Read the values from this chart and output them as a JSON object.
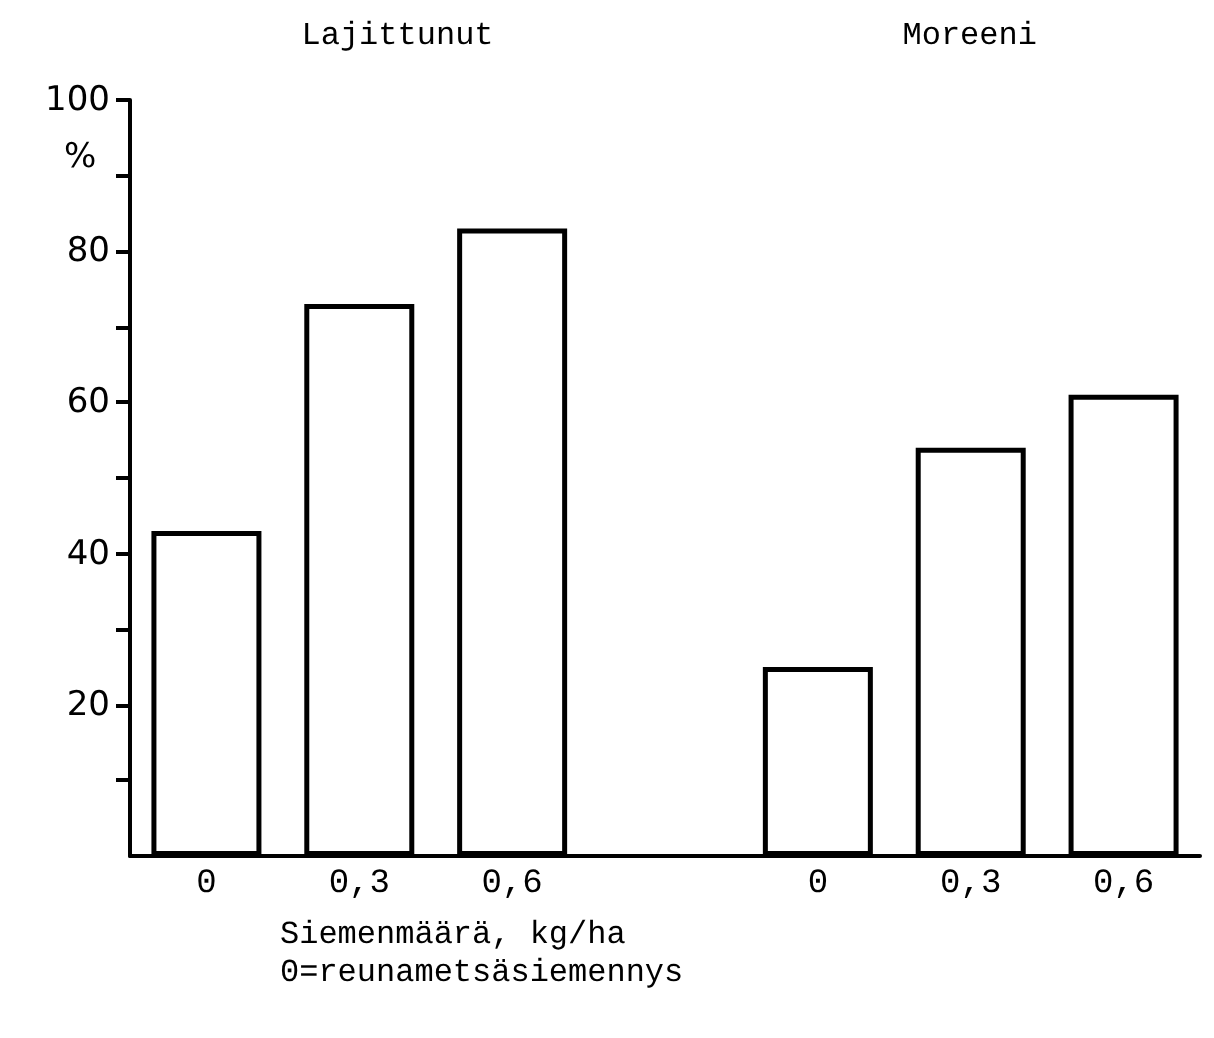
{
  "chart_data": {
    "type": "bar",
    "xlabel": "Siemenmäärä, kg/ha\n0=reunametsäsiemennys",
    "ylabel": "%",
    "annotations": [
      "Lajittunut",
      "Moreeni"
    ],
    "categories": [
      "0",
      "0,3",
      "0,6",
      null,
      "0",
      "0,3",
      "0,6"
    ],
    "values": [
      43,
      73,
      83,
      null,
      25,
      54,
      61
    ],
    "color": "#ffffff",
    "ylim": [
      0,
      100
    ],
    "yticks": [
      {
        "value": 10,
        "label": null
      },
      20,
      {
        "value": 30,
        "label": null
      },
      40,
      {
        "value": 50,
        "label": null
      },
      60,
      {
        "value": 70,
        "label": null
      },
      80,
      {
        "value": 90,
        "label": null
      },
      100
    ],
    "grid": false
  }
}
